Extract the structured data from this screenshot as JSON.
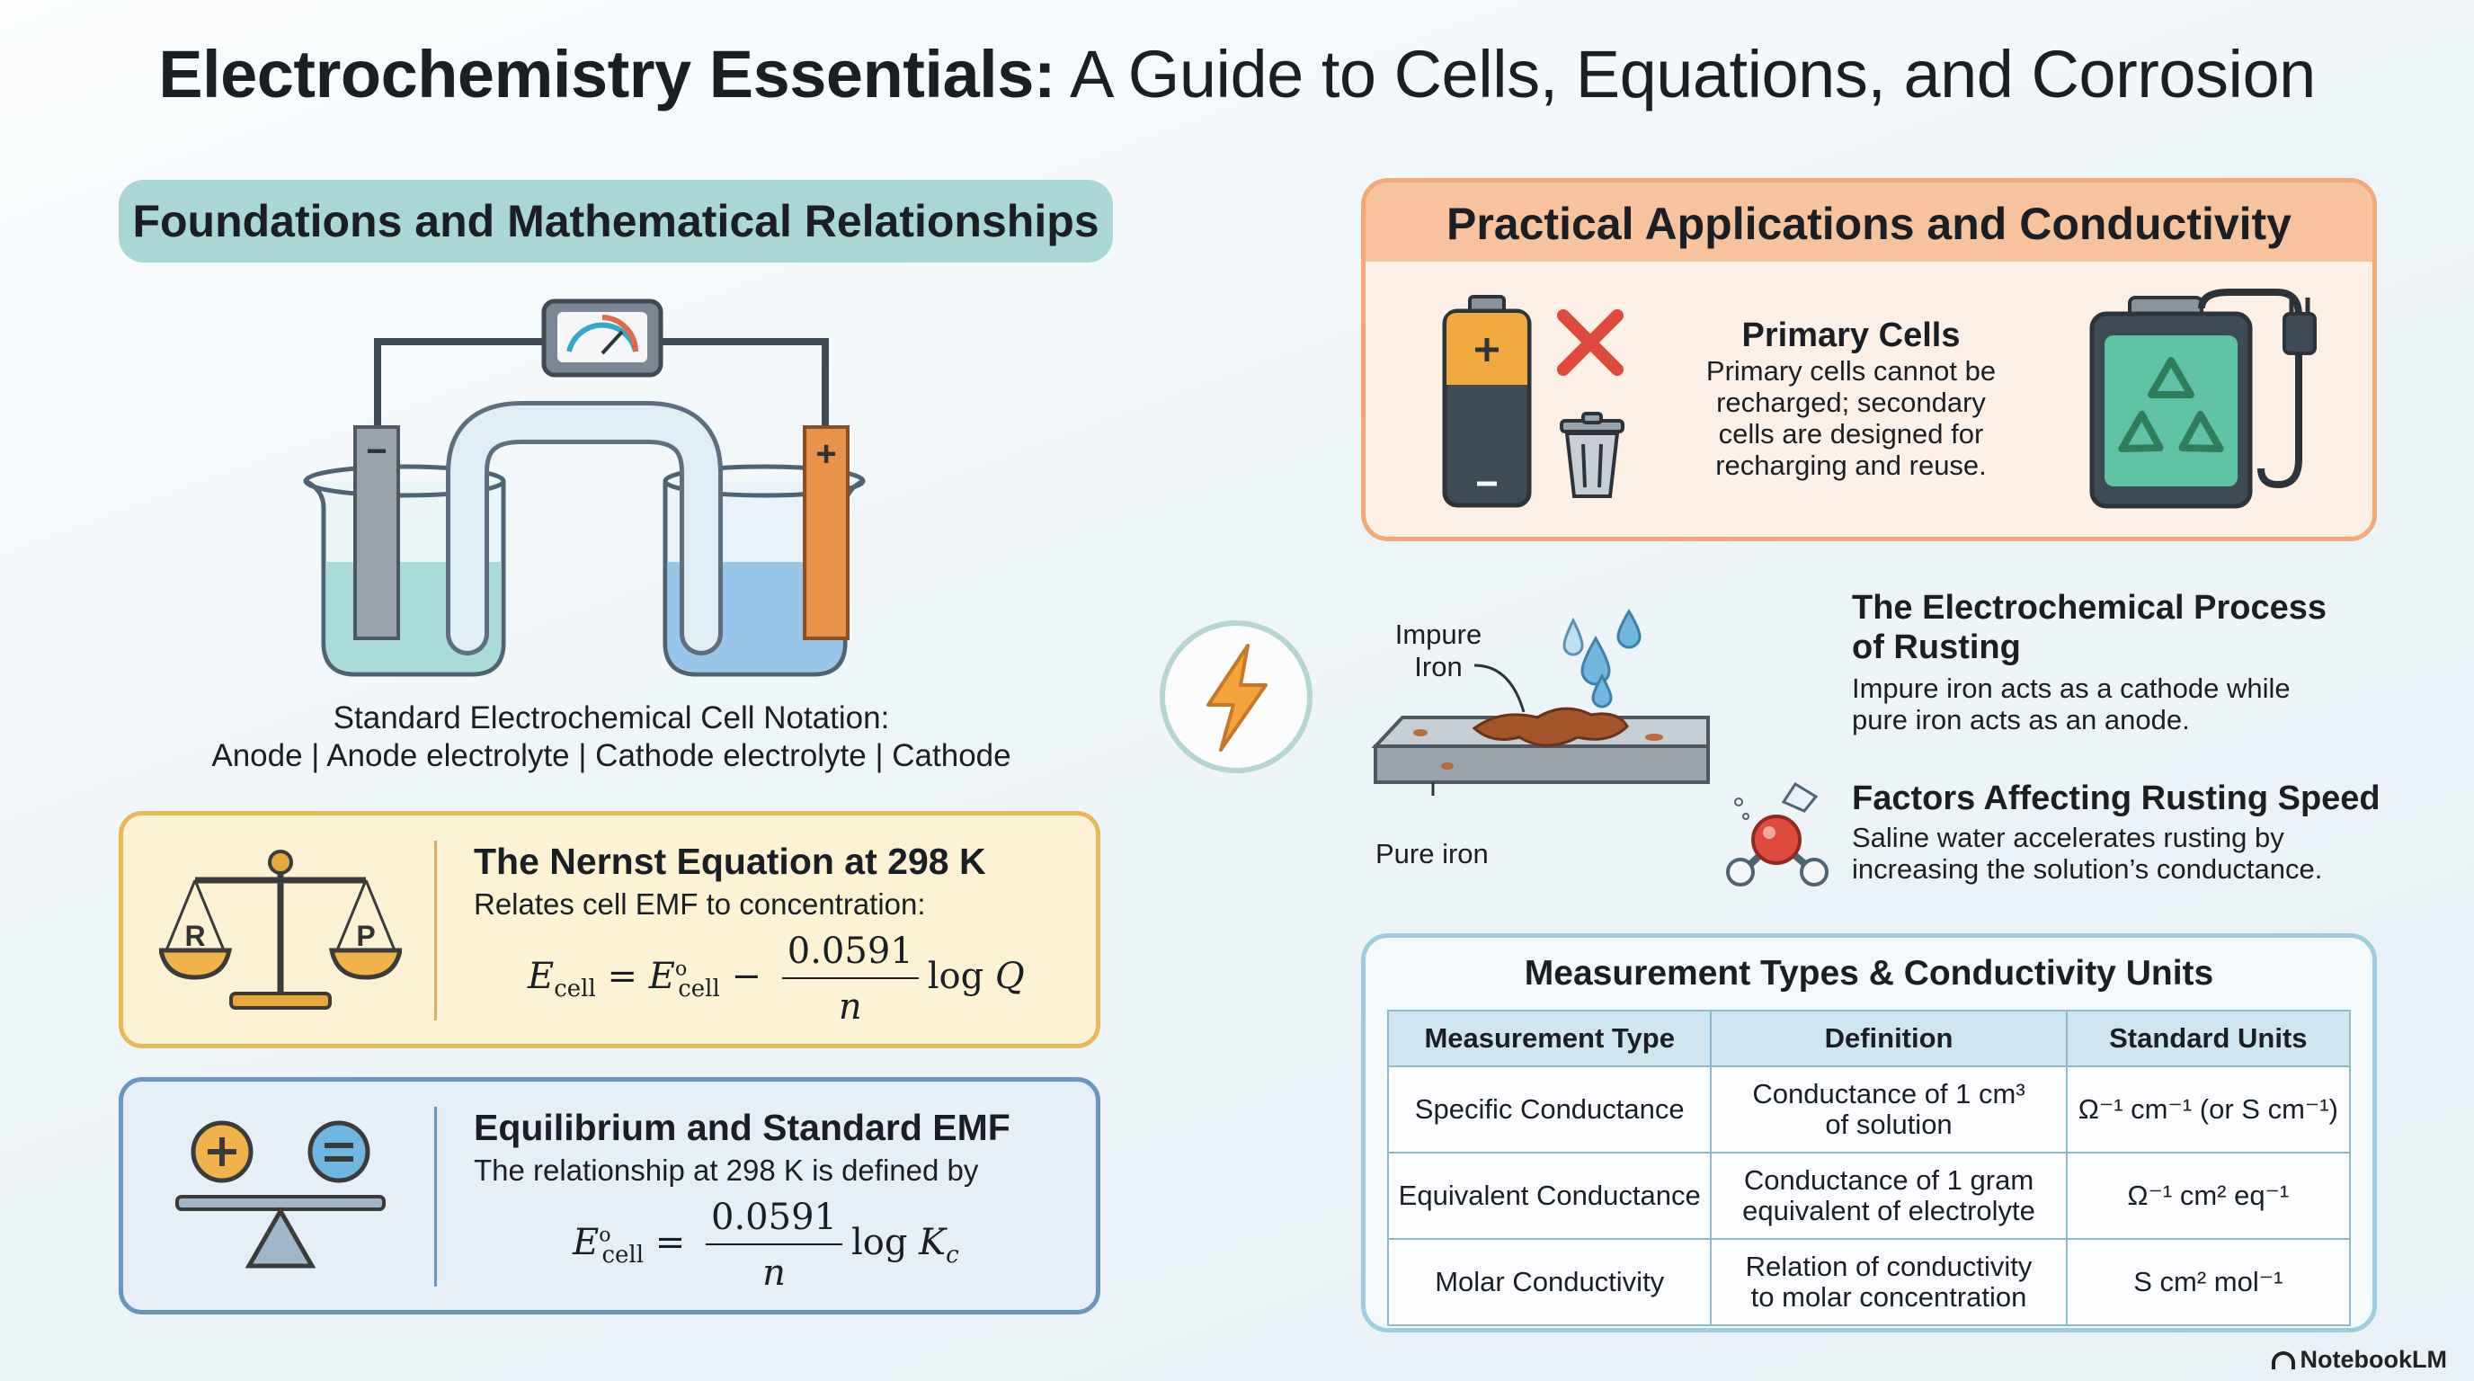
{
  "title": {
    "bold": "Electrochemistry Essentials:",
    "rest": " A Guide to Cells, Equations, and Corrosion"
  },
  "left": {
    "heading": "Foundations and Mathematical Relationships",
    "notation_line1": "Standard Electrochemical Cell Notation:",
    "notation_line2": "Anode | Anode electrolyte | Cathode electrolyte | Cathode",
    "electrode_minus": "−",
    "electrode_plus": "+",
    "nernst": {
      "title": "The Nernst Equation at 298 K",
      "subtitle": "Relates cell EMF to concentration:",
      "scale_left": "R",
      "scale_right": "P",
      "numerator": "0.0591",
      "denominator": "n"
    },
    "equilibrium": {
      "title": "Equilibrium and Standard EMF",
      "subtitle": "The relationship at 298 K is defined by",
      "numerator": "0.0591",
      "denominator": "n"
    }
  },
  "right": {
    "heading": "Practical Applications and Conductivity",
    "primary": {
      "title": "Primary Cells",
      "line1": "Primary cells cannot be",
      "line2": "recharged; secondary",
      "line3": "cells are designed for",
      "line4": "recharging and reuse."
    },
    "rust_labels": {
      "impure_line1": "Impure",
      "impure_line2": "Iron",
      "pure": "Pure iron"
    },
    "rusting": {
      "title_line1": "The Electrochemical Process",
      "title_line2": "of Rusting",
      "text_line1": "Impure iron acts as a cathode while",
      "text_line2": "pure iron acts as an anode."
    },
    "factors": {
      "title": "Factors Affecting Rusting Speed",
      "text_line1": "Saline water accelerates rusting by",
      "text_line2": "increasing the solution’s conductance."
    },
    "table": {
      "title": "Measurement Types & Conductivity Units",
      "headers": [
        "Measurement Type",
        "Definition",
        "Standard Units"
      ],
      "rows": [
        {
          "type": "Specific Conductance",
          "def1": "Conductance of 1 cm³",
          "def2": "of solution",
          "units": "Ω⁻¹ cm⁻¹ (or S cm⁻¹)"
        },
        {
          "type": "Equivalent Conductance",
          "def1": "Conductance of 1 gram",
          "def2": "equivalent of electrolyte",
          "units": "Ω⁻¹ cm² eq⁻¹"
        },
        {
          "type": "Molar Conductivity",
          "def1": "Relation of conductivity",
          "def2": "to molar concentration",
          "units": "S cm² mol⁻¹"
        }
      ]
    }
  },
  "brand": "NotebookLM",
  "colors": {
    "teal": "#a8d7d6",
    "orange": "#f7c39c",
    "yellow_card": "#fdf2d3",
    "blue_card": "#e6eff8"
  }
}
